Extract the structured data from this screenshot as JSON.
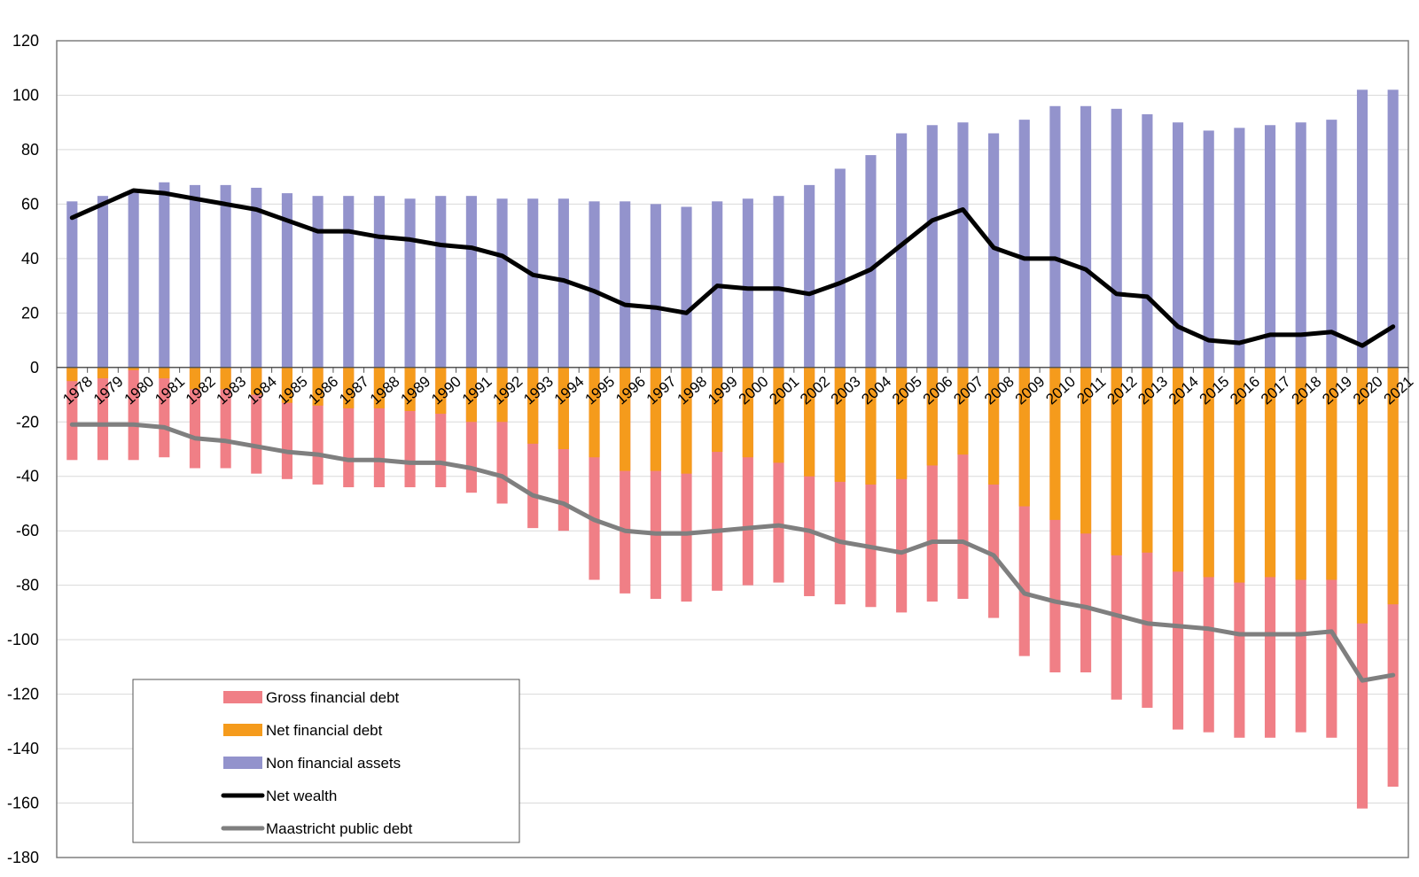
{
  "chart_data": {
    "type": "bar",
    "title": "",
    "xlabel": "",
    "ylabel": "",
    "ylim": [
      -180,
      120
    ],
    "yticks": [
      120,
      100,
      80,
      60,
      40,
      20,
      0,
      -20,
      -40,
      -60,
      -80,
      -100,
      -120,
      -140,
      -160,
      -180
    ],
    "grid": true,
    "legend_position": "bottom-left",
    "categories": [
      "1978",
      "1979",
      "1980",
      "1981",
      "1982",
      "1983",
      "1984",
      "1985",
      "1986",
      "1987",
      "1988",
      "1989",
      "1990",
      "1991",
      "1992",
      "1993",
      "1994",
      "1995",
      "1996",
      "1997",
      "1998",
      "1999",
      "2000",
      "2001",
      "2002",
      "2003",
      "2004",
      "2005",
      "2006",
      "2007",
      "2008",
      "2009",
      "2010",
      "2011",
      "2012",
      "2013",
      "2014",
      "2015",
      "2016",
      "2017",
      "2018",
      "2019",
      "2020",
      "2021"
    ],
    "series": [
      {
        "name": "Gross financial debt",
        "kind": "bar",
        "color": "#f07f86",
        "values": [
          -34,
          -34,
          -34,
          -33,
          -37,
          -37,
          -39,
          -41,
          -43,
          -44,
          -44,
          -44,
          -44,
          -46,
          -50,
          -59,
          -60,
          -78,
          -83,
          -85,
          -86,
          -82,
          -80,
          -79,
          -84,
          -87,
          -88,
          -90,
          -86,
          -85,
          -92,
          -106,
          -112,
          -112,
          -122,
          -125,
          -133,
          -134,
          -136,
          -136,
          -134,
          -136,
          -162,
          -154
        ]
      },
      {
        "name": "Net financial debt",
        "kind": "bar",
        "color": "#f59b1c",
        "values": [
          -5,
          -4,
          -1,
          -4,
          -8,
          -8,
          -10,
          -13,
          -14,
          -15,
          -15,
          -16,
          -17,
          -20,
          -20,
          -28,
          -30,
          -33,
          -38,
          -38,
          -39,
          -31,
          -33,
          -35,
          -40,
          -42,
          -43,
          -41,
          -36,
          -32,
          -43,
          -51,
          -56,
          -61,
          -69,
          -68,
          -75,
          -77,
          -79,
          -77,
          -78,
          -78,
          -94,
          -87
        ]
      },
      {
        "name": "Non financial assets",
        "kind": "bar",
        "color": "#9393cc",
        "values": [
          61,
          63,
          65,
          68,
          67,
          67,
          66,
          64,
          63,
          63,
          63,
          62,
          63,
          63,
          62,
          62,
          62,
          61,
          61,
          60,
          59,
          61,
          62,
          63,
          67,
          73,
          78,
          86,
          89,
          90,
          86,
          91,
          96,
          96,
          95,
          93,
          90,
          87,
          88,
          89,
          90,
          91,
          102,
          102
        ]
      },
      {
        "name": "Net wealth",
        "kind": "line",
        "color": "#000000",
        "values": [
          55,
          60,
          65,
          64,
          62,
          60,
          58,
          54,
          50,
          50,
          48,
          47,
          45,
          44,
          41,
          34,
          32,
          28,
          23,
          22,
          20,
          30,
          29,
          29,
          27,
          31,
          36,
          45,
          54,
          58,
          44,
          40,
          40,
          36,
          27,
          26,
          15,
          10,
          9,
          12,
          12,
          13,
          8,
          15
        ]
      },
      {
        "name": "Maastricht public debt",
        "kind": "line",
        "color": "#7f7f7f",
        "values": [
          -21,
          -21,
          -21,
          -22,
          -26,
          -27,
          -29,
          -31,
          -32,
          -34,
          -34,
          -35,
          -35,
          -37,
          -40,
          -47,
          -50,
          -56,
          -60,
          -61,
          -61,
          -60,
          -59,
          -58,
          -60,
          -64,
          -66,
          -68,
          -64,
          -64,
          -69,
          -83,
          -86,
          -88,
          -91,
          -94,
          -95,
          -96,
          -98,
          -98,
          -98,
          -97,
          -115,
          -113
        ]
      }
    ]
  }
}
